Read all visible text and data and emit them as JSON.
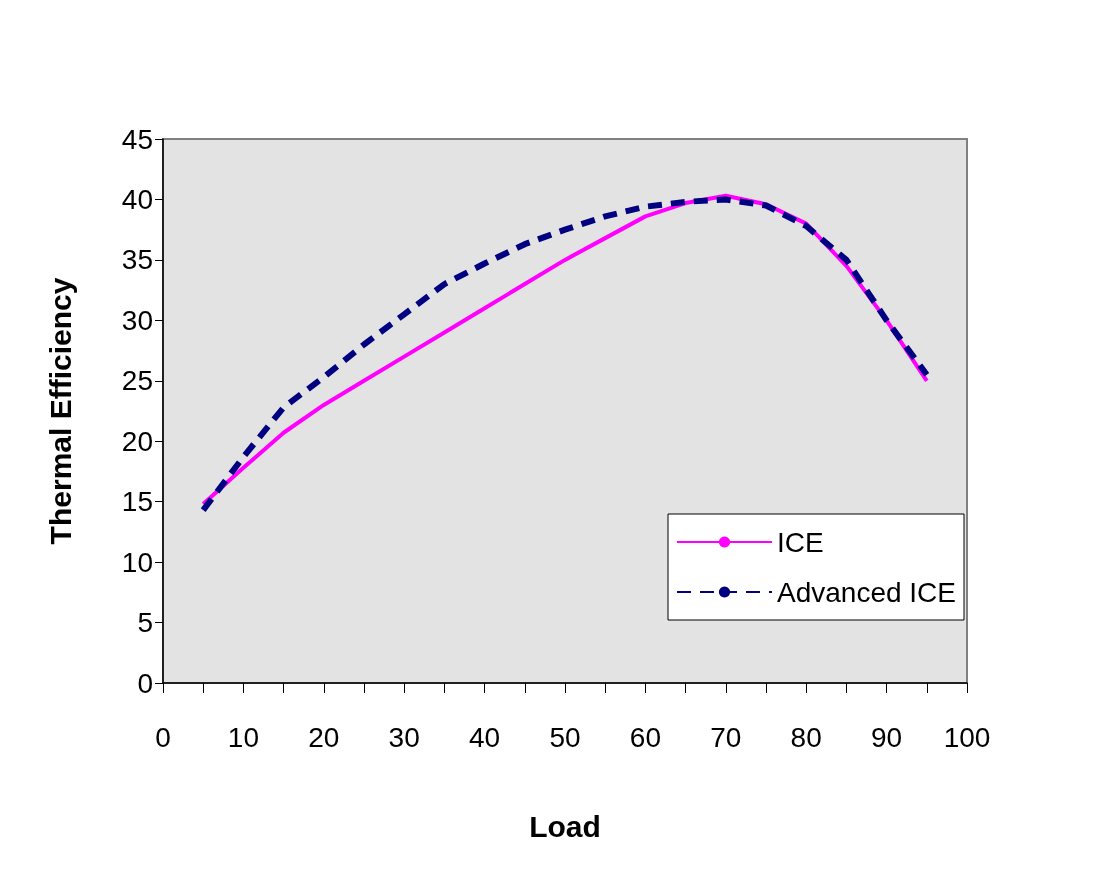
{
  "chart_data": {
    "type": "line",
    "xlabel": "Load",
    "ylabel": "Thermal Efficiency",
    "x": [
      5,
      10,
      15,
      20,
      25,
      30,
      35,
      40,
      45,
      50,
      55,
      60,
      65,
      70,
      75,
      80,
      85,
      90,
      95
    ],
    "series": [
      {
        "name": "ICE",
        "color": "#ff00ff",
        "line_style": "solid",
        "values": [
          14.8,
          17.8,
          20.7,
          23,
          25,
          27,
          29,
          31,
          33,
          35,
          36.8,
          38.6,
          39.7,
          40.3,
          39.6,
          38,
          34.5,
          30,
          25
        ]
      },
      {
        "name": "Advanced ICE",
        "color": "#000080",
        "line_style": "dashed",
        "values": [
          14.3,
          18.7,
          22.8,
          25.3,
          28,
          30.5,
          33,
          34.7,
          36.3,
          37.5,
          38.6,
          39.4,
          39.8,
          40,
          39.5,
          37.8,
          35,
          30,
          25.5
        ]
      }
    ],
    "xlim": [
      0,
      100
    ],
    "xticks": [
      0,
      {
        "value": 5,
        "label": null
      },
      10,
      {
        "value": 15,
        "label": null
      },
      20,
      {
        "value": 25,
        "label": null
      },
      30,
      {
        "value": 35,
        "label": null
      },
      40,
      {
        "value": 45,
        "label": null
      },
      50,
      {
        "value": 55,
        "label": null
      },
      60,
      {
        "value": 65,
        "label": null
      },
      70,
      {
        "value": 75,
        "label": null
      },
      80,
      {
        "value": 85,
        "label": null
      },
      90,
      {
        "value": 95,
        "label": null
      },
      100
    ],
    "ylim": [
      0,
      45
    ],
    "yticks": [
      0,
      5,
      10,
      15,
      20,
      25,
      30,
      35,
      40,
      45
    ],
    "grid": false,
    "legend": "bottom right",
    "marker": "none"
  }
}
